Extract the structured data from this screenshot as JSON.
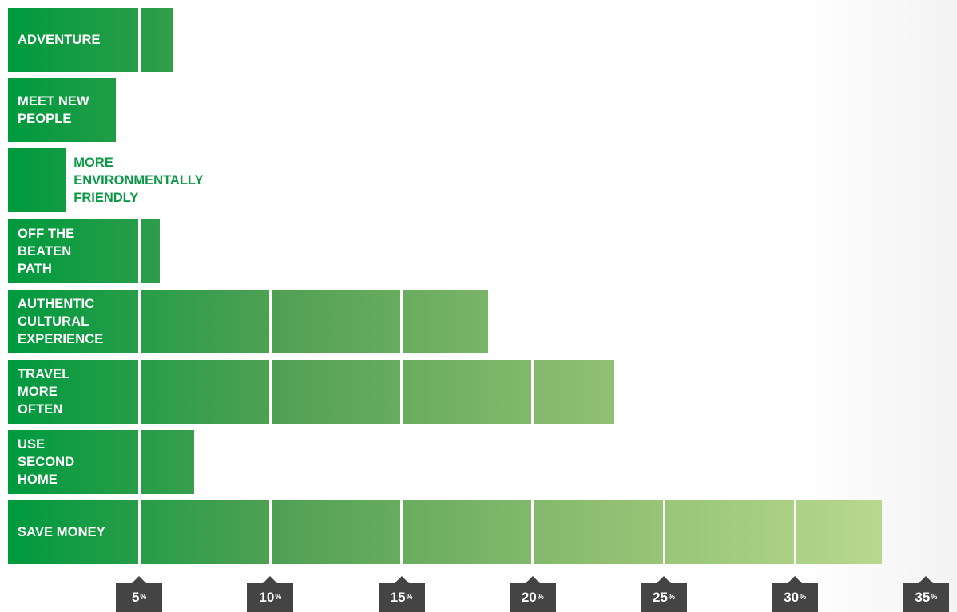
{
  "chart_data": {
    "type": "bar",
    "orientation": "horizontal",
    "categories": [
      "ADVENTURE",
      "MEET NEW PEOPLE",
      "MORE ENVIRONMENTALLY FRIENDLY",
      "OFF THE BEATEN PATH",
      "AUTHENTIC CULTURAL EXPERIENCE",
      "TRAVEL MORE OFTEN",
      "USE SECOND HOME",
      "SAVE MONEY"
    ],
    "label_lines": [
      [
        "ADVENTURE"
      ],
      [
        "MEET NEW",
        "PEOPLE"
      ],
      [
        "MORE",
        "ENVIRONMENTALLY",
        "FRIENDLY"
      ],
      [
        "OFF THE",
        "BEATEN",
        "PATH"
      ],
      [
        "AUTHENTIC",
        "CULTURAL",
        "EXPERIENCE"
      ],
      [
        "TRAVEL",
        "MORE",
        "OFTEN"
      ],
      [
        "USE",
        "SECOND",
        "HOME"
      ],
      [
        "SAVE MONEY"
      ]
    ],
    "values": [
      6.3,
      4.1,
      2.2,
      5.8,
      18.3,
      23.1,
      7.1,
      33.3
    ],
    "xlim": [
      0,
      35
    ],
    "x_ticks": [
      5,
      10,
      15,
      20,
      25,
      30,
      35
    ],
    "tick_suffix": "%",
    "colors": {
      "start": "#009a3e",
      "end": "#b7d98d",
      "tick_bg": "#444444",
      "outside_label": "#0c9a46"
    }
  }
}
